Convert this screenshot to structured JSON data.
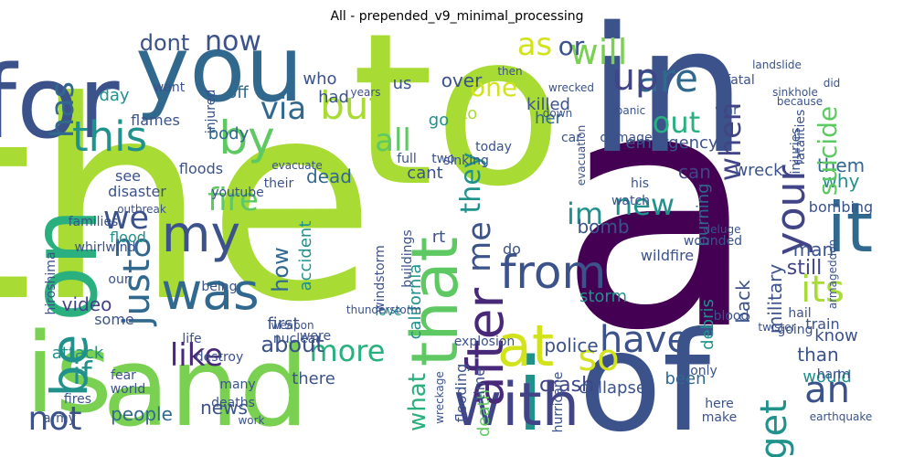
{
  "title": "All - prepended_v9_minimal_processing",
  "palette": {
    "lime": "#a8db34",
    "yellow_green": "#d2e21b",
    "green": "#5ec962",
    "light_green": "#7ad151",
    "teal": "#21918c",
    "teal_light": "#2ab07f",
    "blue": "#31688e",
    "indigo": "#3b528b",
    "slate": "#414487",
    "purple": "#482878",
    "dark_purple": "#440154"
  },
  "words": [
    {
      "text": "the",
      "color": "#a8db34"
    },
    {
      "text": "a",
      "color": "#440154"
    },
    {
      "text": "to",
      "color": "#a8db34"
    },
    {
      "text": "in",
      "color": "#3b528b"
    },
    {
      "text": "of",
      "color": "#3b528b"
    },
    {
      "text": "is",
      "color": "#7ad151"
    },
    {
      "text": "and",
      "color": "#7ad151"
    },
    {
      "text": "for",
      "color": "#3b528b"
    },
    {
      "text": "you",
      "color": "#31688e"
    },
    {
      "text": "i",
      "color": "#21918c"
    },
    {
      "text": "on",
      "color": "#2ab07f"
    },
    {
      "text": "that",
      "color": "#5ec962"
    },
    {
      "text": "with",
      "color": "#414487"
    },
    {
      "text": "at",
      "color": "#d2e21b"
    },
    {
      "text": "it",
      "color": "#31688e"
    },
    {
      "text": "be",
      "color": "#21918c"
    },
    {
      "text": "was",
      "color": "#31688e"
    },
    {
      "text": "my",
      "color": "#3b528b"
    },
    {
      "text": "by",
      "color": "#5ec962"
    },
    {
      "text": "from",
      "color": "#3b528b"
    },
    {
      "text": "this",
      "color": "#21918c"
    },
    {
      "text": "are",
      "color": "#31688e"
    },
    {
      "text": "its",
      "color": "#a8db34"
    },
    {
      "text": "have",
      "color": "#3b528b"
    },
    {
      "text": "so",
      "color": "#d2e21b"
    },
    {
      "text": "more",
      "color": "#2ab07f"
    },
    {
      "text": "after",
      "color": "#482878"
    },
    {
      "text": "like",
      "color": "#482878"
    },
    {
      "text": "an",
      "color": "#3b528b"
    },
    {
      "text": "not",
      "color": "#3b528b"
    },
    {
      "text": "just",
      "color": "#31688e"
    },
    {
      "text": "but",
      "color": "#a8db34"
    },
    {
      "text": "me",
      "color": "#3b528b"
    },
    {
      "text": "all",
      "color": "#5ec962"
    },
    {
      "text": "up",
      "color": "#414487"
    },
    {
      "text": "out",
      "color": "#2ab07f"
    },
    {
      "text": "will",
      "color": "#7ad151"
    },
    {
      "text": "as",
      "color": "#d2e21b"
    },
    {
      "text": "or",
      "color": "#3b528b"
    },
    {
      "text": "now",
      "color": "#3b528b"
    },
    {
      "text": "via",
      "color": "#31688e"
    },
    {
      "text": "has",
      "color": "#31688e"
    },
    {
      "text": "dont",
      "color": "#3b528b"
    },
    {
      "text": "we",
      "color": "#3b528b"
    },
    {
      "text": "if",
      "color": "#21918c"
    },
    {
      "text": "no",
      "color": "#31688e"
    },
    {
      "text": "fire",
      "color": "#5ec962"
    },
    {
      "text": "new",
      "color": "#21918c"
    },
    {
      "text": "im",
      "color": "#21918c"
    },
    {
      "text": "your",
      "color": "#414487"
    },
    {
      "text": "when",
      "color": "#414487"
    },
    {
      "text": "get",
      "color": "#21918c"
    },
    {
      "text": "about",
      "color": "#3b528b"
    },
    {
      "text": "one",
      "color": "#d2e21b"
    },
    {
      "text": "they",
      "color": "#21918c"
    },
    {
      "text": "what",
      "color": "#2ab07f"
    },
    {
      "text": "how",
      "color": "#31688e"
    },
    {
      "text": "people",
      "color": "#31688e"
    },
    {
      "text": "news",
      "color": "#3b528b"
    },
    {
      "text": "video",
      "color": "#414487"
    },
    {
      "text": "attack",
      "color": "#21918c"
    },
    {
      "text": "storm",
      "color": "#21918c"
    },
    {
      "text": "police",
      "color": "#3b528b"
    },
    {
      "text": "california",
      "color": "#21918c"
    },
    {
      "text": "bomb",
      "color": "#3b528b"
    },
    {
      "text": "wildfire",
      "color": "#3b528b"
    },
    {
      "text": "crash",
      "color": "#414487"
    },
    {
      "text": "death",
      "color": "#5ec962"
    },
    {
      "text": "time",
      "color": "#3b528b"
    },
    {
      "text": "collapse",
      "color": "#3b528b"
    },
    {
      "text": "been",
      "color": "#31688e"
    },
    {
      "text": "would",
      "color": "#21918c"
    },
    {
      "text": "than",
      "color": "#3b528b"
    },
    {
      "text": "still",
      "color": "#414487"
    },
    {
      "text": "back",
      "color": "#3b528b"
    },
    {
      "text": "military",
      "color": "#3b528b"
    },
    {
      "text": "man",
      "color": "#3b528b"
    },
    {
      "text": "why",
      "color": "#21918c"
    },
    {
      "text": "them",
      "color": "#31688e"
    },
    {
      "text": "know",
      "color": "#3b528b"
    },
    {
      "text": "there",
      "color": "#3b528b"
    },
    {
      "text": "emergency",
      "color": "#3b528b"
    },
    {
      "text": "burning",
      "color": "#31688e"
    },
    {
      "text": "can",
      "color": "#414487"
    },
    {
      "text": "suicide",
      "color": "#5ec962"
    },
    {
      "text": "off",
      "color": "#31688e"
    },
    {
      "text": "day",
      "color": "#21918c"
    },
    {
      "text": "us",
      "color": "#3b528b"
    },
    {
      "text": "over",
      "color": "#3b528b"
    },
    {
      "text": "who",
      "color": "#3b528b"
    },
    {
      "text": "killed",
      "color": "#3b528b"
    },
    {
      "text": "into",
      "color": "#a8db34"
    },
    {
      "text": "her",
      "color": "#31688e"
    },
    {
      "text": "go",
      "color": "#21918c"
    },
    {
      "text": "had",
      "color": "#3b528b"
    },
    {
      "text": "cant",
      "color": "#3b528b"
    },
    {
      "text": "do",
      "color": "#3b528b"
    },
    {
      "text": "see",
      "color": "#3b528b"
    },
    {
      "text": "families",
      "color": "#3b528b"
    },
    {
      "text": "disaster",
      "color": "#3b528b"
    },
    {
      "text": "dead",
      "color": "#31688e"
    },
    {
      "text": "accident",
      "color": "#21918c"
    },
    {
      "text": "body",
      "color": "#31688e"
    },
    {
      "text": "flames",
      "color": "#3b528b"
    },
    {
      "text": "some",
      "color": "#3b528b"
    },
    {
      "text": "going",
      "color": "#3b528b"
    },
    {
      "text": "wreck",
      "color": "#3b528b"
    },
    {
      "text": "fatal",
      "color": "#3b528b"
    },
    {
      "text": "injuries",
      "color": "#3b528b"
    },
    {
      "text": "flood",
      "color": "#21918c"
    },
    {
      "text": "first",
      "color": "#3b528b"
    },
    {
      "text": "were",
      "color": "#3b528b"
    },
    {
      "text": "love",
      "color": "#21918c"
    },
    {
      "text": "explosion",
      "color": "#3b528b"
    },
    {
      "text": "train",
      "color": "#3b528b"
    },
    {
      "text": "hail",
      "color": "#3b528b"
    },
    {
      "text": "debris",
      "color": "#21918c"
    },
    {
      "text": "blood",
      "color": "#3b528b"
    },
    {
      "text": "buildings",
      "color": "#3b528b"
    },
    {
      "text": "windstorm",
      "color": "#3b528b"
    },
    {
      "text": "thunderstorm",
      "color": "#3b528b"
    },
    {
      "text": "nuclear",
      "color": "#3b528b"
    },
    {
      "text": "weapon",
      "color": "#3b528b"
    },
    {
      "text": "world",
      "color": "#3b528b"
    },
    {
      "text": "fires",
      "color": "#3b528b"
    },
    {
      "text": "army",
      "color": "#3b528b"
    },
    {
      "text": "fear",
      "color": "#3b528b"
    },
    {
      "text": "life",
      "color": "#3b528b"
    },
    {
      "text": "destroy",
      "color": "#3b528b"
    },
    {
      "text": "many",
      "color": "#3b528b"
    },
    {
      "text": "deaths",
      "color": "#3b528b"
    },
    {
      "text": "work",
      "color": "#3b528b"
    },
    {
      "text": "flooding",
      "color": "#3b528b"
    },
    {
      "text": "wreckage",
      "color": "#3b528b"
    },
    {
      "text": "hurricane",
      "color": "#3b528b"
    },
    {
      "text": "only",
      "color": "#3b528b"
    },
    {
      "text": "here",
      "color": "#3b528b"
    },
    {
      "text": "make",
      "color": "#3b528b"
    },
    {
      "text": "earthquake",
      "color": "#3b528b"
    },
    {
      "text": "harm",
      "color": "#3b528b"
    },
    {
      "text": "hiroshima",
      "color": "#3b528b"
    },
    {
      "text": "bombing",
      "color": "#3b528b"
    },
    {
      "text": "armageddon",
      "color": "#3b528b"
    },
    {
      "text": "twister",
      "color": "#3b528b"
    },
    {
      "text": "wounded",
      "color": "#3b528b"
    },
    {
      "text": "watch",
      "color": "#3b528b"
    },
    {
      "text": "his",
      "color": "#3b528b"
    },
    {
      "text": "injured",
      "color": "#3b528b"
    },
    {
      "text": "floods",
      "color": "#3b528b"
    },
    {
      "text": "youtube",
      "color": "#3b528b"
    },
    {
      "text": "evacuate",
      "color": "#3b528b"
    },
    {
      "text": "evacuation",
      "color": "#3b528b"
    },
    {
      "text": "damage",
      "color": "#3b528b"
    },
    {
      "text": "panic",
      "color": "#3b528b"
    },
    {
      "text": "car",
      "color": "#3b528b"
    },
    {
      "text": "today",
      "color": "#3b528b"
    },
    {
      "text": "full",
      "color": "#3b528b"
    },
    {
      "text": "two",
      "color": "#3b528b"
    },
    {
      "text": "want",
      "color": "#3b528b"
    },
    {
      "text": "outbreak",
      "color": "#3b528b"
    },
    {
      "text": "whirlwind",
      "color": "#3b528b"
    },
    {
      "text": "our",
      "color": "#3b528b"
    },
    {
      "text": "rt",
      "color": "#3b528b"
    },
    {
      "text": "being",
      "color": "#3b528b"
    },
    {
      "text": "their",
      "color": "#3b528b"
    },
    {
      "text": "war",
      "color": "#3b528b"
    },
    {
      "text": "deluge",
      "color": "#3b528b"
    },
    {
      "text": "fatalities",
      "color": "#3b528b"
    },
    {
      "text": "sinking",
      "color": "#3b528b"
    },
    {
      "text": "years",
      "color": "#3b528b"
    },
    {
      "text": "wrecked",
      "color": "#3b528b"
    },
    {
      "text": "down",
      "color": "#3b528b"
    },
    {
      "text": "then",
      "color": "#3b528b"
    },
    {
      "text": "landslide",
      "color": "#3b528b"
    },
    {
      "text": "sinkhole",
      "color": "#3b528b"
    },
    {
      "text": "because",
      "color": "#3b528b"
    },
    {
      "text": "did",
      "color": "#3b528b"
    }
  ]
}
